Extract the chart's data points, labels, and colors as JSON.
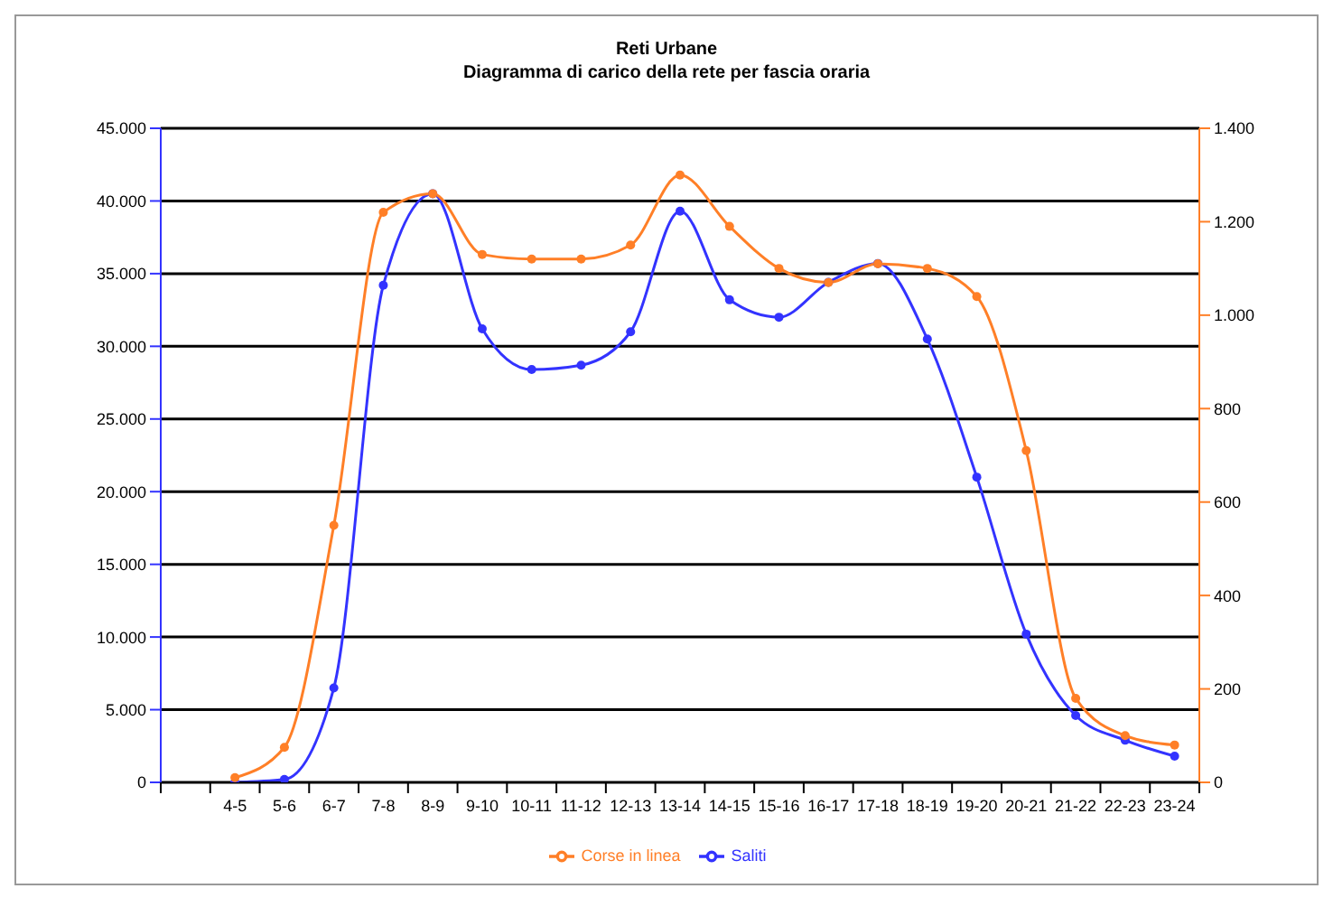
{
  "chart_data": {
    "type": "line",
    "title": "Reti Urbane",
    "subtitle": "Diagramma di carico della rete per fascia oraria",
    "categories": [
      null,
      "4-5",
      "5-6",
      "6-7",
      "7-8",
      "8-9",
      "9-10",
      "10-11",
      "11-12",
      "12-13",
      "13-14",
      "14-15",
      "15-16",
      "16-17",
      "17-18",
      "18-19",
      "19-20",
      "20-21",
      "21-22",
      "22-23",
      "23-24"
    ],
    "series": [
      {
        "name": "Saliti",
        "color": "#3333ff",
        "values": [
          null,
          0,
          200,
          6500,
          34200,
          40500,
          31200,
          28400,
          28700,
          31000,
          39300,
          33200,
          32000,
          34400,
          35700,
          30500,
          21000,
          10200,
          4600,
          2900,
          1800
        ]
      },
      {
        "name": "Corse in linea",
        "color": "#ff7f27",
        "axis": "y2",
        "values": [
          null,
          10,
          75,
          550,
          1220,
          1260,
          1130,
          1120,
          1120,
          1150,
          1300,
          1190,
          1100,
          1070,
          1110,
          1100,
          1040,
          710,
          180,
          100,
          80
        ]
      }
    ],
    "ylim": [
      0,
      45000
    ],
    "yticks": [
      {
        "value": 0,
        "label": "0"
      },
      {
        "value": 5000,
        "label": "5.000"
      },
      {
        "value": 10000,
        "label": "10.000"
      },
      {
        "value": 15000,
        "label": "15.000"
      },
      {
        "value": 20000,
        "label": "20.000"
      },
      {
        "value": 25000,
        "label": "25.000"
      },
      {
        "value": 30000,
        "label": "30.000"
      },
      {
        "value": 35000,
        "label": "35.000"
      },
      {
        "value": 40000,
        "label": "40.000"
      },
      {
        "value": 45000,
        "label": "45.000"
      }
    ],
    "y2lim": [
      0,
      1400
    ],
    "y2ticks": [
      {
        "value": 0,
        "label": "0"
      },
      {
        "value": 200,
        "label": "200"
      },
      {
        "value": 400,
        "label": "400"
      },
      {
        "value": 600,
        "label": "600"
      },
      {
        "value": 800,
        "label": "800"
      },
      {
        "value": 1000,
        "label": "1.000"
      },
      {
        "value": 1200,
        "label": "1.200"
      },
      {
        "value": 1400,
        "label": "1.400"
      }
    ],
    "grid": "y",
    "legend": "bottom",
    "marker": "circle",
    "line_style": "solid"
  }
}
